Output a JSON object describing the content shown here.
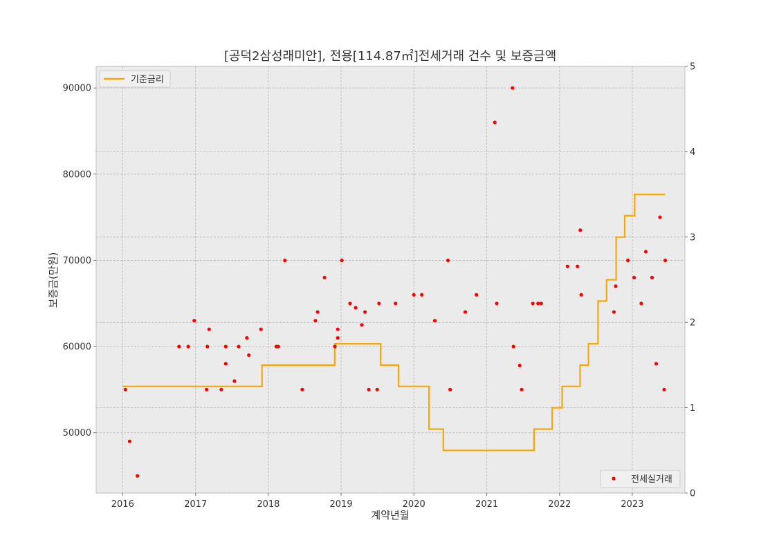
{
  "chart_data": {
    "type": "scatter",
    "title": "[공덕2삼성래미안], 전용[114.87㎡]전세거래 건수 및 보증금액",
    "xlabel": "계약년월",
    "ylabel": "보증금(만원)",
    "xlim": [
      "2015-08-21",
      "2023-09-22"
    ],
    "ylim": [
      43000,
      92500
    ],
    "y2lim": [
      0,
      5
    ],
    "grid": true,
    "x_ticks": [
      "2016",
      "2017",
      "2018",
      "2019",
      "2020",
      "2021",
      "2022",
      "2023"
    ],
    "y_ticks": [
      "50000",
      "60000",
      "70000",
      "80000",
      "90000"
    ],
    "y2_ticks": [
      "0",
      "1",
      "2",
      "3",
      "4",
      "5"
    ],
    "legend_line": {
      "label": "기준금리",
      "position": "upper-left"
    },
    "legend_scatter": {
      "label": "전세실거래",
      "position": "lower-right"
    },
    "colors": {
      "rate_line": "#FFA500",
      "points": "#FF0000",
      "plot_bg": "#EBEBEB",
      "grid": "#B3B3B3"
    },
    "series": [
      {
        "name": "기준금리",
        "type": "step",
        "axis": "right",
        "points": [
          [
            "2016-01-01",
            1.25
          ],
          [
            "2016-06-09",
            1.25
          ],
          [
            "2016-06-10",
            1.25
          ],
          [
            "2017-11-30",
            1.5
          ],
          [
            "2018-11-30",
            1.75
          ],
          [
            "2019-07-18",
            1.5
          ],
          [
            "2019-10-16",
            1.25
          ],
          [
            "2020-03-17",
            0.75
          ],
          [
            "2020-05-28",
            0.5
          ],
          [
            "2021-08-26",
            0.75
          ],
          [
            "2021-11-25",
            1.0
          ],
          [
            "2022-01-14",
            1.25
          ],
          [
            "2022-04-14",
            1.5
          ],
          [
            "2022-05-26",
            1.75
          ],
          [
            "2022-07-13",
            2.25
          ],
          [
            "2022-08-25",
            2.5
          ],
          [
            "2022-10-12",
            3.0
          ],
          [
            "2022-11-24",
            3.25
          ],
          [
            "2023-01-13",
            3.5
          ],
          [
            "2023-06-15",
            3.5
          ]
        ]
      },
      {
        "name": "전세실거래",
        "type": "scatter",
        "axis": "left",
        "points": [
          [
            "2016-01-15",
            55000
          ],
          [
            "2016-02-05",
            49000
          ],
          [
            "2016-03-15",
            45000
          ],
          [
            "2016-10-10",
            60000
          ],
          [
            "2016-11-25",
            60000
          ],
          [
            "2016-12-25",
            63000
          ],
          [
            "2017-02-25",
            55000
          ],
          [
            "2017-03-01",
            60000
          ],
          [
            "2017-03-10",
            62000
          ],
          [
            "2017-05-10",
            55000
          ],
          [
            "2017-06-01",
            60000
          ],
          [
            "2017-06-01",
            58000
          ],
          [
            "2017-07-15",
            56000
          ],
          [
            "2017-08-05",
            60000
          ],
          [
            "2017-09-15",
            61000
          ],
          [
            "2017-09-25",
            59000
          ],
          [
            "2017-11-25",
            62000
          ],
          [
            "2018-02-10",
            60000
          ],
          [
            "2018-02-20",
            60000
          ],
          [
            "2018-03-25",
            70000
          ],
          [
            "2018-06-20",
            55000
          ],
          [
            "2018-08-25",
            63000
          ],
          [
            "2018-09-05",
            64000
          ],
          [
            "2018-10-10",
            68000
          ],
          [
            "2018-12-01",
            60000
          ],
          [
            "2018-12-15",
            62000
          ],
          [
            "2018-12-15",
            61000
          ],
          [
            "2019-01-05",
            70000
          ],
          [
            "2019-02-15",
            65000
          ],
          [
            "2019-03-15",
            64500
          ],
          [
            "2019-04-15",
            62500
          ],
          [
            "2019-05-01",
            64000
          ],
          [
            "2019-05-20",
            55000
          ],
          [
            "2019-07-01",
            55000
          ],
          [
            "2019-07-10",
            65000
          ],
          [
            "2019-10-01",
            65000
          ],
          [
            "2020-01-01",
            66000
          ],
          [
            "2020-02-10",
            66000
          ],
          [
            "2020-04-15",
            63000
          ],
          [
            "2020-06-20",
            70000
          ],
          [
            "2020-07-01",
            55000
          ],
          [
            "2020-09-15",
            64000
          ],
          [
            "2020-11-10",
            66000
          ],
          [
            "2021-02-10",
            86000
          ],
          [
            "2021-02-20",
            65000
          ],
          [
            "2021-05-10",
            90000
          ],
          [
            "2021-05-15",
            60000
          ],
          [
            "2021-06-15",
            57800
          ],
          [
            "2021-06-25",
            55000
          ],
          [
            "2021-08-20",
            65000
          ],
          [
            "2021-09-15",
            65000
          ],
          [
            "2021-10-01",
            65000
          ],
          [
            "2022-02-10",
            69300
          ],
          [
            "2022-04-01",
            69300
          ],
          [
            "2022-04-15",
            73500
          ],
          [
            "2022-04-20",
            66000
          ],
          [
            "2022-10-01",
            64000
          ],
          [
            "2022-10-10",
            67000
          ],
          [
            "2022-12-10",
            70000
          ],
          [
            "2023-01-10",
            68000
          ],
          [
            "2023-02-15",
            65000
          ],
          [
            "2023-03-10",
            71000
          ],
          [
            "2023-04-10",
            68000
          ],
          [
            "2023-05-01",
            58000
          ],
          [
            "2023-05-20",
            75000
          ],
          [
            "2023-06-10",
            55000
          ],
          [
            "2023-06-15",
            70000
          ]
        ]
      }
    ]
  }
}
